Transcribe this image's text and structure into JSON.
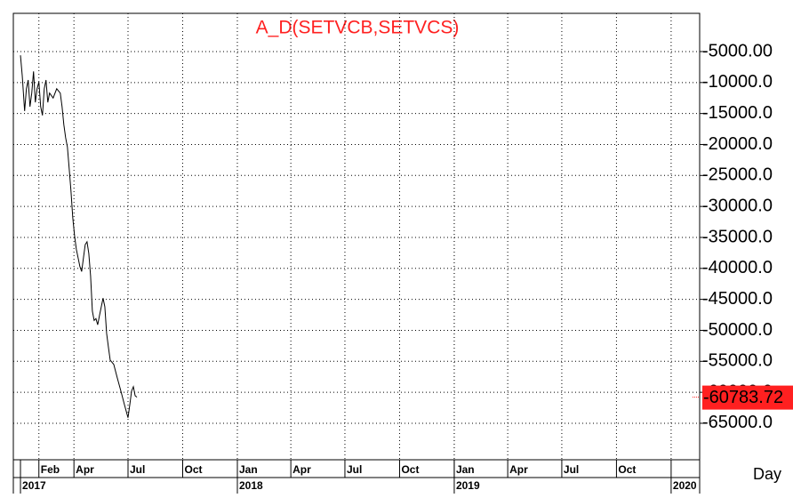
{
  "chart_data": {
    "type": "line",
    "title": "A_D(SETVCB,SETVCS)",
    "x_label": "Day",
    "series": [
      {
        "name": "A_D(SETVCB,SETVCS)",
        "color": "#000000",
        "x": [
          "2017-01-01",
          "2017-01-04",
          "2017-01-08",
          "2017-01-11",
          "2017-01-14",
          "2017-01-17",
          "2017-01-20",
          "2017-01-23",
          "2017-01-26",
          "2017-01-29",
          "2017-02-01",
          "2017-02-04",
          "2017-02-07",
          "2017-02-10",
          "2017-02-13",
          "2017-02-16",
          "2017-02-19",
          "2017-02-25",
          "2017-03-03",
          "2017-03-09",
          "2017-03-12",
          "2017-03-15",
          "2017-03-18",
          "2017-03-21",
          "2017-03-24",
          "2017-03-27",
          "2017-03-30",
          "2017-04-02",
          "2017-04-05",
          "2017-04-08",
          "2017-04-11",
          "2017-04-14",
          "2017-04-17",
          "2017-04-20",
          "2017-04-23",
          "2017-04-26",
          "2017-04-29",
          "2017-05-02",
          "2017-05-05",
          "2017-05-08",
          "2017-05-11",
          "2017-05-14",
          "2017-05-17",
          "2017-05-20",
          "2017-05-23",
          "2017-05-26",
          "2017-05-29",
          "2017-06-01",
          "2017-06-07",
          "2017-06-13",
          "2017-06-19",
          "2017-06-25",
          "2017-07-01",
          "2017-07-04",
          "2017-07-07",
          "2017-07-10",
          "2017-07-13",
          "2017-07-16"
        ],
        "values": [
          -5600,
          -8900,
          -14600,
          -11000,
          -9600,
          -13900,
          -11700,
          -8200,
          -13200,
          -11000,
          -9900,
          -13900,
          -15300,
          -11000,
          -9600,
          -13200,
          -11700,
          -12500,
          -11000,
          -11700,
          -13900,
          -16800,
          -18900,
          -20400,
          -23900,
          -27500,
          -31800,
          -34700,
          -36900,
          -38300,
          -39700,
          -40500,
          -38300,
          -36150,
          -35700,
          -37600,
          -41200,
          -46900,
          -48400,
          -48100,
          -49100,
          -47600,
          -46200,
          -44800,
          -46200,
          -50500,
          -52700,
          -54800,
          -55500,
          -57700,
          -59800,
          -62000,
          -64100,
          -62000,
          -59800,
          -59100,
          -60550,
          -60783.72
        ]
      }
    ],
    "xlim": [
      "2016-12-20",
      "2020-02-18"
    ],
    "xticks": [
      {
        "value": "2017-02-01",
        "label": "Feb"
      },
      {
        "value": "2017-04-01",
        "label": "Apr"
      },
      {
        "value": "2017-07-01",
        "label": "Jul"
      },
      {
        "value": "2017-10-01",
        "label": "Oct"
      },
      {
        "value": "2018-01-01",
        "label": "Jan"
      },
      {
        "value": "2018-04-01",
        "label": "Apr"
      },
      {
        "value": "2018-07-01",
        "label": "Jul"
      },
      {
        "value": "2018-10-01",
        "label": "Oct"
      },
      {
        "value": "2019-01-01",
        "label": "Jan"
      },
      {
        "value": "2019-04-01",
        "label": "Apr"
      },
      {
        "value": "2019-07-01",
        "label": "Jul"
      },
      {
        "value": "2019-10-01",
        "label": "Oct"
      }
    ],
    "year_ticks": [
      {
        "value": "2017-01-01",
        "label": "2017"
      },
      {
        "value": "2018-01-01",
        "label": "2018"
      },
      {
        "value": "2019-01-01",
        "label": "2019"
      },
      {
        "value": "2020-01-01",
        "label": "2020"
      }
    ],
    "ylim": [
      -70890,
      1170
    ],
    "yticks": [
      {
        "value": -5000,
        "label": "-5000.00"
      },
      {
        "value": -10000,
        "label": "-10000.0"
      },
      {
        "value": -15000,
        "label": "-15000.0"
      },
      {
        "value": -20000,
        "label": "-20000.0"
      },
      {
        "value": -25000,
        "label": "-25000.0"
      },
      {
        "value": -30000,
        "label": "-30000.0"
      },
      {
        "value": -35000,
        "label": "-35000.0"
      },
      {
        "value": -40000,
        "label": "-40000.0"
      },
      {
        "value": -45000,
        "label": "-45000.0"
      },
      {
        "value": -50000,
        "label": "-50000.0"
      },
      {
        "value": -55000,
        "label": "-55000.0"
      },
      {
        "value": -60000,
        "label": "-60000.0"
      },
      {
        "value": -65000,
        "label": "-65000.0"
      }
    ],
    "grid": true,
    "last_value_color": "#ff2020",
    "title_color": "#ff2020"
  }
}
